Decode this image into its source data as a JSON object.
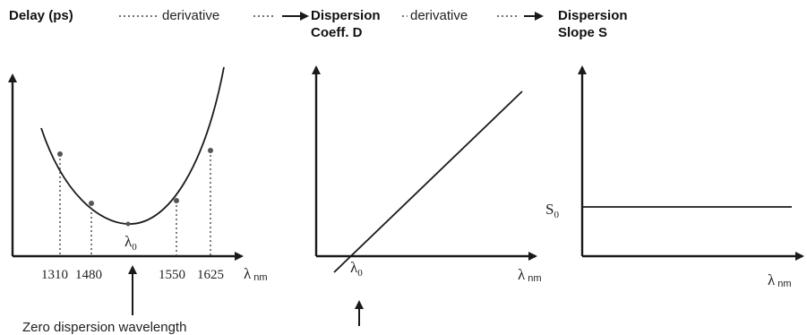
{
  "headers": {
    "delay": "Delay (ps)",
    "derivative_1": "derivative",
    "dispersion_line1": "Dispersion",
    "dispersion_line2": "Coeff. D",
    "derivative_2": "derivative",
    "slope_line1": "Dispersion",
    "slope_line2": "Slope S"
  },
  "panel1": {
    "ticks": [
      "1310",
      "1480",
      "1550",
      "1625"
    ],
    "lambda0": "λ",
    "lambda0_sub": "0",
    "x_axis_label": "λ",
    "x_axis_sub": "nm",
    "annotation": "Zero dispersion wavelength"
  },
  "panel2": {
    "lambda0": "λ",
    "lambda0_sub": "0",
    "x_axis_label": "λ",
    "x_axis_sub": "nm"
  },
  "panel3": {
    "s0": "S",
    "s0_sub": "0",
    "x_axis_label": "λ",
    "x_axis_sub": "nm"
  }
}
